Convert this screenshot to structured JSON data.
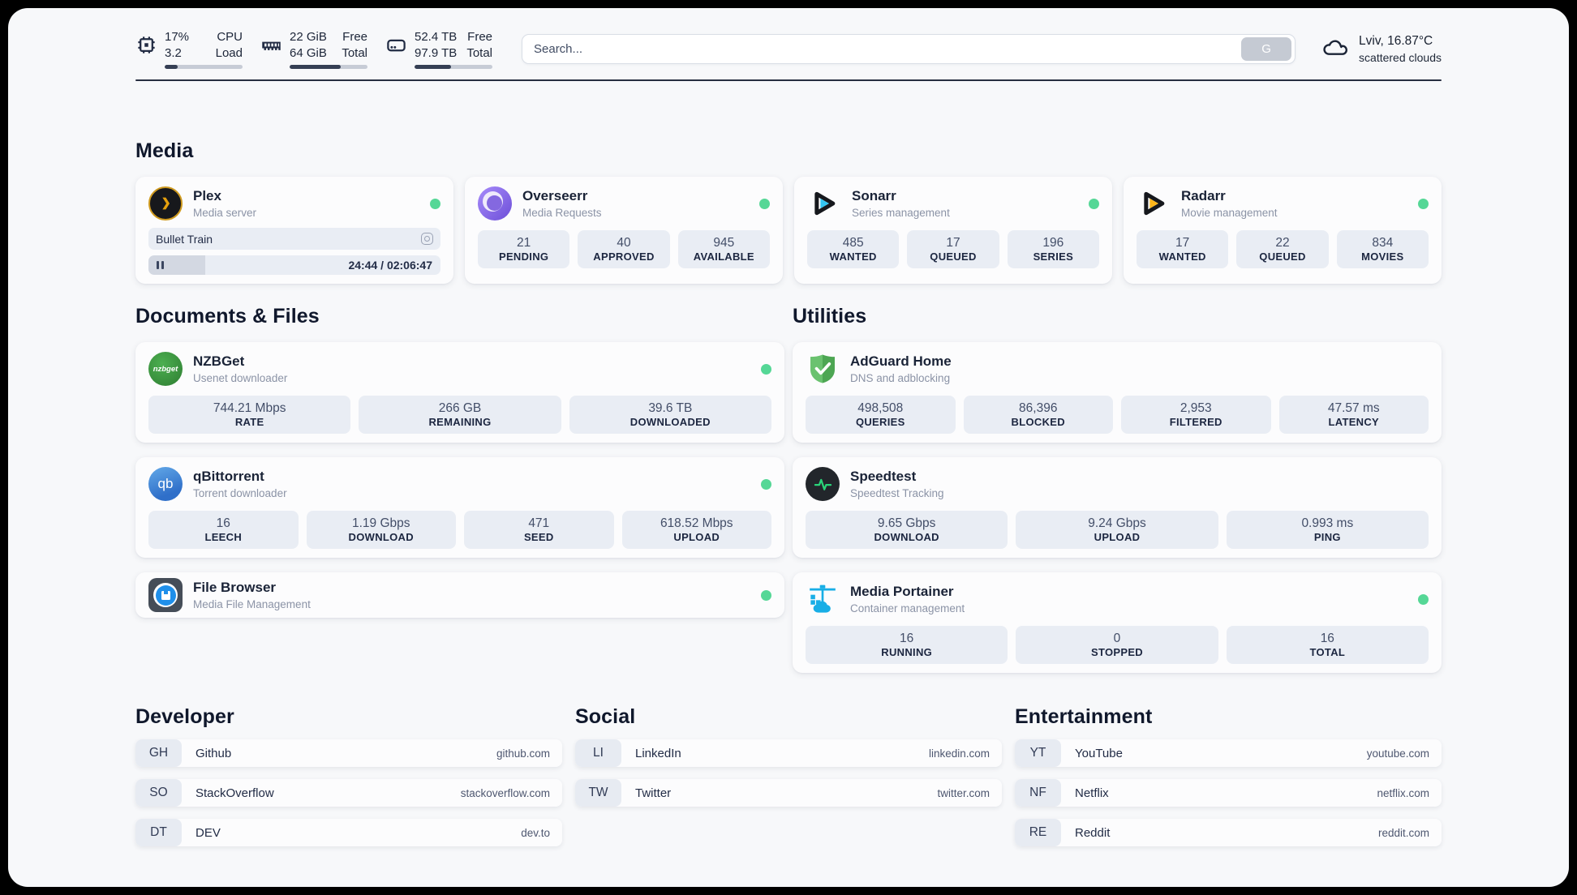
{
  "colors": {
    "page_bg": "#f7f8fa",
    "card_bg": "#fcfcfd",
    "stat_box_bg": "#e9edf4",
    "status_green": "#55d796",
    "bar_fill": "#353f54",
    "bar_track": "#c7ccd6",
    "text_dark": "#1a2337",
    "text_muted": "#8b93a6",
    "plex_gold": "#e5a00d",
    "sonarr_cyan": "#33c5f2",
    "radarr_yellow": "#fdb61a",
    "nzbget_green": "#2e7d32",
    "qbittorrent_blue": "#2f6fc9",
    "adguard_green": "#5cb85f",
    "speedtest_green": "#2ad479",
    "portainer_blue": "#18aee6"
  },
  "icons": {
    "cpu": "cpu-chip",
    "memory": "ram-stick",
    "storage": "hard-drive",
    "weather": "cloud",
    "search_button": "G",
    "now_playing": "disc-ring",
    "player": "pause-bars",
    "status": "green-dot"
  },
  "header": {
    "metrics": [
      {
        "name": "cpu",
        "values": [
          "17%",
          "3.2"
        ],
        "labels": [
          "CPU",
          "Load"
        ],
        "progress": 17
      },
      {
        "name": "memory",
        "values": [
          "22 GiB",
          "64 GiB"
        ],
        "labels": [
          "Free",
          "Total"
        ],
        "progress": 66
      },
      {
        "name": "storage",
        "values": [
          "52.4 TB",
          "97.9 TB"
        ],
        "labels": [
          "Free",
          "Total"
        ],
        "progress": 47
      }
    ],
    "search": {
      "placeholder": "Search...",
      "button_label": "G"
    },
    "weather": {
      "line1": "Lviv, 16.87°C",
      "line2": "scattered clouds"
    }
  },
  "sections": {
    "media": {
      "title": "Media",
      "plex": {
        "name": "Plex",
        "desc": "Media server",
        "now_playing": "Bullet Train",
        "elapsed_total": "24:44 / 02:06:47",
        "progress": 19.5
      },
      "overseerr": {
        "name": "Overseerr",
        "desc": "Media Requests",
        "stats": [
          {
            "value": "21",
            "label": "PENDING"
          },
          {
            "value": "40",
            "label": "APPROVED"
          },
          {
            "value": "945",
            "label": "AVAILABLE"
          }
        ]
      },
      "sonarr": {
        "name": "Sonarr",
        "desc": "Series management",
        "stats": [
          {
            "value": "485",
            "label": "WANTED"
          },
          {
            "value": "17",
            "label": "QUEUED"
          },
          {
            "value": "196",
            "label": "SERIES"
          }
        ]
      },
      "radarr": {
        "name": "Radarr",
        "desc": "Movie management",
        "stats": [
          {
            "value": "17",
            "label": "WANTED"
          },
          {
            "value": "22",
            "label": "QUEUED"
          },
          {
            "value": "834",
            "label": "MOVIES"
          }
        ]
      }
    },
    "documents": {
      "title": "Documents & Files",
      "nzbget": {
        "name": "NZBGet",
        "desc": "Usenet downloader",
        "stats": [
          {
            "value": "744.21 Mbps",
            "label": "RATE"
          },
          {
            "value": "266 GB",
            "label": "REMAINING"
          },
          {
            "value": "39.6 TB",
            "label": "DOWNLOADED"
          }
        ]
      },
      "qbittorrent": {
        "name": "qBittorrent",
        "desc": "Torrent downloader",
        "stats": [
          {
            "value": "16",
            "label": "LEECH"
          },
          {
            "value": "1.19 Gbps",
            "label": "DOWNLOAD"
          },
          {
            "value": "471",
            "label": "SEED"
          },
          {
            "value": "618.52 Mbps",
            "label": "UPLOAD"
          }
        ]
      },
      "filebrowser": {
        "name": "File Browser",
        "desc": "Media File Management"
      }
    },
    "utilities": {
      "title": "Utilities",
      "adguard": {
        "name": "AdGuard Home",
        "desc": "DNS and adblocking",
        "stats": [
          {
            "value": "498,508",
            "label": "QUERIES"
          },
          {
            "value": "86,396",
            "label": "BLOCKED"
          },
          {
            "value": "2,953",
            "label": "FILTERED"
          },
          {
            "value": "47.57 ms",
            "label": "LATENCY"
          }
        ]
      },
      "speedtest": {
        "name": "Speedtest",
        "desc": "Speedtest Tracking",
        "stats": [
          {
            "value": "9.65 Gbps",
            "label": "DOWNLOAD"
          },
          {
            "value": "9.24 Gbps",
            "label": "UPLOAD"
          },
          {
            "value": "0.993 ms",
            "label": "PING"
          }
        ]
      },
      "portainer": {
        "name": "Media Portainer",
        "desc": "Container management",
        "stats": [
          {
            "value": "16",
            "label": "RUNNING"
          },
          {
            "value": "0",
            "label": "STOPPED"
          },
          {
            "value": "16",
            "label": "TOTAL"
          }
        ]
      }
    },
    "links": {
      "developer": {
        "title": "Developer",
        "items": [
          {
            "abbr": "GH",
            "name": "Github",
            "url": "github.com"
          },
          {
            "abbr": "SO",
            "name": "StackOverflow",
            "url": "stackoverflow.com"
          },
          {
            "abbr": "DT",
            "name": "DEV",
            "url": "dev.to"
          }
        ]
      },
      "social": {
        "title": "Social",
        "items": [
          {
            "abbr": "LI",
            "name": "LinkedIn",
            "url": "linkedin.com"
          },
          {
            "abbr": "TW",
            "name": "Twitter",
            "url": "twitter.com"
          }
        ]
      },
      "entertainment": {
        "title": "Entertainment",
        "items": [
          {
            "abbr": "YT",
            "name": "YouTube",
            "url": "youtube.com"
          },
          {
            "abbr": "NF",
            "name": "Netflix",
            "url": "netflix.com"
          },
          {
            "abbr": "RE",
            "name": "Reddit",
            "url": "reddit.com"
          }
        ]
      }
    }
  }
}
